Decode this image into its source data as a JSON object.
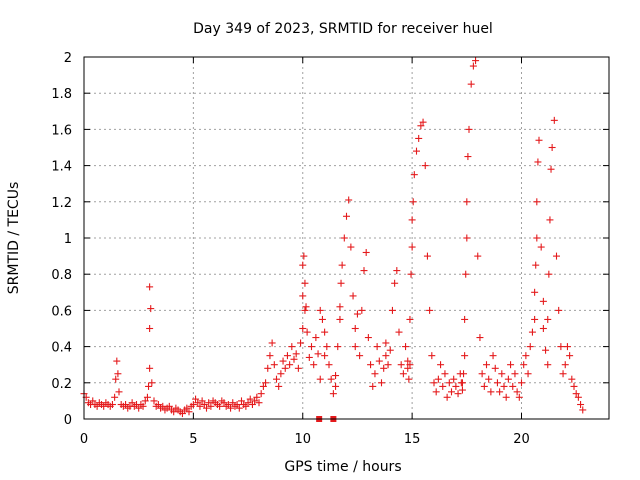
{
  "chart_data": {
    "type": "scatter",
    "title": "Day 349 of 2023, SRMTID for receiver huel",
    "xlabel": "GPS time / hours",
    "ylabel": "SRMTID / TECUs",
    "xlim": [
      0,
      24
    ],
    "ylim": [
      0,
      2
    ],
    "xticks": [
      0,
      5,
      10,
      15,
      20
    ],
    "yticks": [
      0,
      0.2,
      0.4,
      0.6,
      0.8,
      1,
      1.2,
      1.4,
      1.6,
      1.8,
      2
    ],
    "ytick_labels": [
      "0",
      "0.2",
      "0.4",
      "0.6",
      "0.8",
      "1",
      "1.2",
      "1.4",
      "1.6",
      "1.8",
      "2"
    ],
    "grid": true,
    "marker": "plus",
    "color": "#e41a1c",
    "series": [
      {
        "name": "SRMTID",
        "x": [
          0.0,
          0.1,
          0.2,
          0.3,
          0.4,
          0.5,
          0.6,
          0.7,
          0.8,
          0.9,
          1.0,
          1.1,
          1.2,
          1.3,
          1.4,
          1.45,
          1.5,
          1.55,
          1.6,
          1.7,
          1.8,
          1.9,
          2.0,
          2.1,
          2.2,
          2.3,
          2.4,
          2.5,
          2.6,
          2.7,
          2.8,
          2.9,
          2.95,
          3.0,
          3.0,
          3.0,
          3.05,
          3.1,
          3.2,
          3.3,
          3.4,
          3.5,
          3.6,
          3.7,
          3.8,
          3.9,
          4.0,
          4.1,
          4.2,
          4.3,
          4.4,
          4.5,
          4.6,
          4.7,
          4.8,
          4.9,
          5.0,
          5.1,
          5.2,
          5.3,
          5.4,
          5.5,
          5.6,
          5.7,
          5.8,
          5.9,
          6.0,
          6.1,
          6.2,
          6.3,
          6.4,
          6.5,
          6.6,
          6.7,
          6.8,
          6.9,
          7.0,
          7.1,
          7.2,
          7.3,
          7.4,
          7.5,
          7.6,
          7.7,
          7.8,
          7.9,
          8.0,
          8.1,
          8.2,
          8.3,
          8.4,
          8.5,
          8.6,
          8.7,
          8.8,
          8.9,
          9.0,
          9.1,
          9.2,
          9.3,
          9.4,
          9.5,
          9.6,
          9.7,
          9.8,
          9.9,
          10.0,
          10.0,
          10.0,
          10.05,
          10.1,
          10.1,
          10.15,
          10.2,
          10.3,
          10.4,
          10.5,
          10.6,
          10.7,
          10.8,
          10.8,
          10.9,
          11.0,
          11.0,
          11.1,
          11.2,
          11.3,
          11.4,
          11.5,
          11.5,
          11.6,
          11.7,
          11.7,
          11.75,
          11.8,
          11.9,
          12.0,
          12.1,
          12.2,
          12.3,
          12.4,
          12.4,
          12.5,
          12.6,
          12.7,
          12.8,
          12.9,
          13.0,
          13.1,
          13.2,
          13.3,
          13.4,
          13.5,
          13.6,
          13.7,
          13.8,
          13.8,
          13.9,
          14.0,
          14.1,
          14.2,
          14.3,
          14.4,
          14.5,
          14.6,
          14.7,
          14.8,
          14.8,
          14.85,
          14.9,
          14.9,
          14.95,
          15.0,
          15.0,
          15.05,
          15.1,
          15.2,
          15.3,
          15.4,
          15.5,
          15.6,
          15.7,
          15.8,
          15.9,
          16.0,
          16.1,
          16.2,
          16.3,
          16.4,
          16.5,
          16.6,
          16.7,
          16.8,
          16.9,
          17.0,
          17.1,
          17.2,
          17.25,
          17.3,
          17.3,
          17.35,
          17.4,
          17.4,
          17.45,
          17.5,
          17.5,
          17.55,
          17.6,
          17.7,
          17.8,
          17.9,
          18.0,
          18.1,
          18.2,
          18.3,
          18.4,
          18.5,
          18.6,
          18.7,
          18.8,
          18.9,
          19.0,
          19.1,
          19.2,
          19.3,
          19.4,
          19.5,
          19.6,
          19.7,
          19.8,
          19.9,
          20.0,
          20.1,
          20.2,
          20.3,
          20.4,
          20.5,
          20.6,
          20.6,
          20.65,
          20.7,
          20.7,
          20.75,
          20.8,
          20.9,
          21.0,
          21.0,
          21.1,
          21.2,
          21.2,
          21.25,
          21.3,
          21.35,
          21.4,
          21.5,
          21.6,
          21.7,
          21.8,
          21.9,
          22.0,
          22.1,
          22.2,
          22.3,
          22.4,
          22.5,
          22.6,
          22.7,
          22.8
        ],
        "y": [
          0.14,
          0.12,
          0.09,
          0.08,
          0.1,
          0.08,
          0.07,
          0.09,
          0.08,
          0.07,
          0.09,
          0.08,
          0.07,
          0.08,
          0.12,
          0.22,
          0.32,
          0.25,
          0.15,
          0.08,
          0.07,
          0.08,
          0.06,
          0.07,
          0.09,
          0.07,
          0.08,
          0.06,
          0.08,
          0.07,
          0.1,
          0.12,
          0.18,
          0.28,
          0.5,
          0.73,
          0.61,
          0.2,
          0.1,
          0.07,
          0.08,
          0.06,
          0.07,
          0.05,
          0.06,
          0.07,
          0.05,
          0.04,
          0.06,
          0.05,
          0.04,
          0.03,
          0.05,
          0.06,
          0.04,
          0.07,
          0.08,
          0.11,
          0.09,
          0.07,
          0.1,
          0.08,
          0.06,
          0.09,
          0.07,
          0.1,
          0.09,
          0.08,
          0.07,
          0.1,
          0.09,
          0.07,
          0.08,
          0.06,
          0.09,
          0.07,
          0.08,
          0.06,
          0.1,
          0.08,
          0.07,
          0.09,
          0.11,
          0.08,
          0.1,
          0.12,
          0.09,
          0.14,
          0.18,
          0.2,
          0.28,
          0.35,
          0.42,
          0.3,
          0.22,
          0.18,
          0.25,
          0.32,
          0.28,
          0.35,
          0.3,
          0.4,
          0.33,
          0.36,
          0.28,
          0.42,
          0.5,
          0.68,
          0.85,
          0.9,
          0.75,
          0.6,
          0.62,
          0.48,
          0.34,
          0.4,
          0.3,
          0.45,
          0.36,
          0.22,
          0.6,
          0.55,
          0.35,
          0.48,
          0.4,
          0.3,
          0.22,
          0.14,
          0.18,
          0.24,
          0.4,
          0.55,
          0.62,
          0.75,
          0.85,
          1.0,
          1.12,
          1.21,
          0.95,
          0.68,
          0.5,
          0.4,
          0.58,
          0.35,
          0.6,
          0.82,
          0.92,
          0.45,
          0.3,
          0.18,
          0.25,
          0.4,
          0.32,
          0.2,
          0.28,
          0.35,
          0.42,
          0.3,
          0.38,
          0.6,
          0.75,
          0.82,
          0.48,
          0.3,
          0.25,
          0.4,
          0.32,
          0.28,
          0.22,
          0.3,
          0.55,
          0.8,
          0.95,
          1.1,
          1.2,
          1.35,
          1.48,
          1.55,
          1.62,
          1.64,
          1.4,
          0.9,
          0.6,
          0.35,
          0.2,
          0.15,
          0.22,
          0.3,
          0.18,
          0.25,
          0.12,
          0.2,
          0.15,
          0.22,
          0.18,
          0.14,
          0.25,
          0.2,
          0.16,
          0.2,
          0.25,
          0.35,
          0.55,
          0.8,
          1.0,
          1.2,
          1.45,
          1.6,
          1.85,
          1.95,
          1.98,
          0.9,
          0.45,
          0.25,
          0.18,
          0.3,
          0.22,
          0.15,
          0.35,
          0.28,
          0.2,
          0.15,
          0.25,
          0.18,
          0.12,
          0.22,
          0.3,
          0.18,
          0.25,
          0.15,
          0.12,
          0.2,
          0.3,
          0.35,
          0.25,
          0.4,
          0.48,
          0.55,
          0.7,
          0.85,
          1.0,
          1.2,
          1.42,
          1.54,
          0.95,
          0.65,
          0.5,
          0.38,
          0.3,
          0.55,
          0.8,
          1.1,
          1.38,
          1.5,
          1.65,
          0.9,
          0.6,
          0.4,
          0.25,
          0.3,
          0.4,
          0.35,
          0.22,
          0.18,
          0.14,
          0.12,
          0.08,
          0.05
        ]
      }
    ],
    "gap_markers": [
      10.75,
      11.4
    ]
  }
}
